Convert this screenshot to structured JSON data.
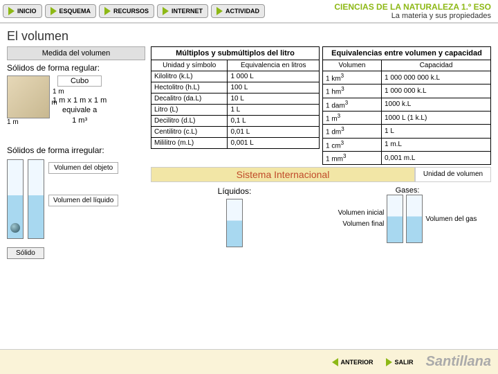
{
  "nav": {
    "inicio": "INICIO",
    "esquema": "ESQUEMA",
    "recursos": "RECURSOS",
    "internet": "INTERNET",
    "actividad": "ACTIVIDAD"
  },
  "header": {
    "title": "CIENCIAS DE LA NATURALEZA 1.º ESO",
    "subtitle": "La materia y sus propiedades"
  },
  "main_title": "El volumen",
  "left": {
    "medida": "Medida del volumen",
    "solidos_reg": "Sólidos de forma regular:",
    "cubo": "Cubo",
    "dim": "1 m",
    "formula1": "1 m x 1 m x 1 m",
    "formula2": "equivale a",
    "formula3": "1 m³",
    "solidos_irr": "Sólidos de forma irregular:",
    "vol_obj": "Volumen del objeto",
    "solido": "Sólido",
    "vol_liq": "Volumen del líquido"
  },
  "table1": {
    "title": "Múltiplos y submúltiplos del litro",
    "h1": "Unidad y símbolo",
    "h2": "Equivalencia en litros",
    "rows": [
      [
        "Kilolitro (k.L)",
        "1 000 L"
      ],
      [
        "Hectolitro (h.L)",
        "100 L"
      ],
      [
        "Decalitro (da.L)",
        "10 L"
      ],
      [
        "Litro (L)",
        "1 L"
      ],
      [
        "Decilitro (d.L)",
        "0,1 L"
      ],
      [
        "Centilitro (c.L)",
        "0,01 L"
      ],
      [
        "Mililitro (m.L)",
        "0,001 L"
      ]
    ]
  },
  "table2": {
    "title": "Equivalencias entre volumen y capacidad",
    "h1": "Volumen",
    "h2": "Capacidad",
    "rows": [
      [
        "1 km³",
        "1 000 000 000 k.L"
      ],
      [
        "1 hm³",
        "1 000 000 k.L"
      ],
      [
        "1 dam³",
        "1000 k.L"
      ],
      [
        "1 m³",
        "1000 L  (1 k.L)"
      ],
      [
        "1 dm³",
        "1 L"
      ],
      [
        "1 cm³",
        "1 m.L"
      ],
      [
        "1 mm³",
        "0,001 m.L"
      ]
    ]
  },
  "si": {
    "main": "Sistema Internacional",
    "unit": "Unidad de volumen"
  },
  "bottom": {
    "liquidos": "Líquidos:",
    "gases": "Gases:",
    "vol_ini": "Volumen inicial",
    "vol_fin": "Volumen final",
    "vol_gas": "Volumen del gas"
  },
  "footer": {
    "anterior": "ANTERIOR",
    "salir": "SALIR",
    "logo": "Santillana"
  },
  "colors": {
    "accent": "#8db815",
    "si_bg": "#f2e6a6",
    "si_fg": "#c04a2a",
    "footer_bg": "#faf3d8"
  }
}
